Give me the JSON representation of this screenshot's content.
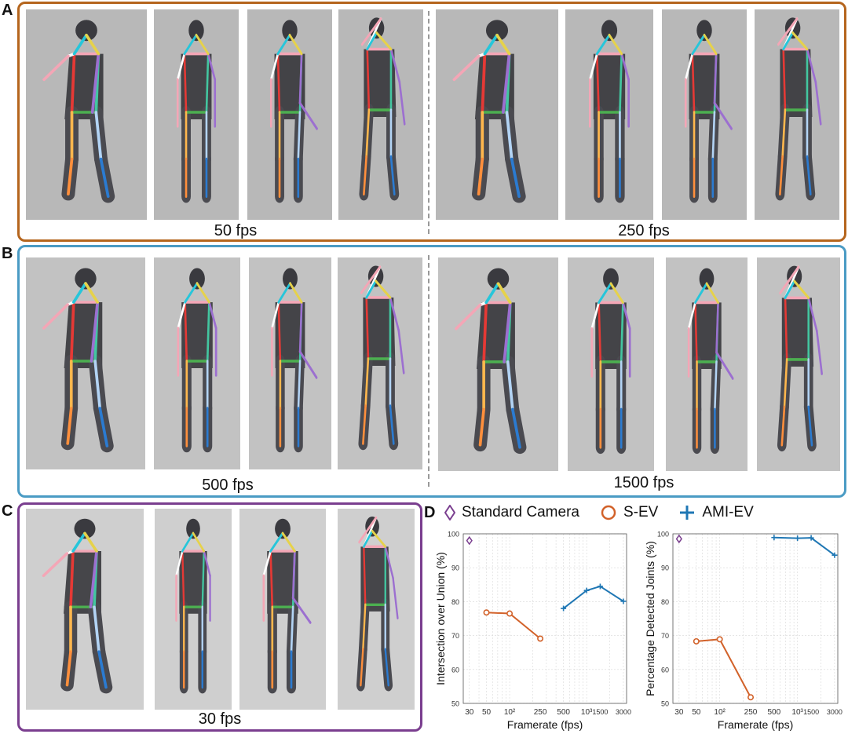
{
  "panels": {
    "A": {
      "letter": "A",
      "left_label": "50 fps",
      "right_label": "250 fps",
      "color": "#b5651d"
    },
    "B": {
      "letter": "B",
      "left_label": "500 fps",
      "right_label": "1500 fps",
      "color": "#4a9bc4"
    },
    "C": {
      "letter": "C",
      "label": "30 fps",
      "color": "#7a3e8f"
    },
    "D": {
      "letter": "D"
    }
  },
  "legend": {
    "standard": {
      "label": "Standard Camera",
      "color": "#7a3e8f"
    },
    "sev": {
      "label": "S-EV",
      "color": "#d2622a"
    },
    "amiev": {
      "label": "AMI-EV",
      "color": "#1f77b4"
    }
  },
  "chart_data": [
    {
      "type": "line",
      "xlabel": "Framerate (fps)",
      "ylabel": "Intersection over Union (%)",
      "xscale": "log",
      "xlim": [
        25,
        3300
      ],
      "ylim": [
        50,
        100
      ],
      "yticks": [
        50,
        60,
        70,
        80,
        90,
        100
      ],
      "xticks": [
        {
          "v": 30,
          "t": "30"
        },
        {
          "v": 50,
          "t": "50"
        },
        {
          "v": 100,
          "t": "10²"
        },
        {
          "v": 250,
          "t": "250"
        },
        {
          "v": 500,
          "t": "500"
        },
        {
          "v": 1000,
          "t": "10³"
        },
        {
          "v": 1500,
          "t": "1500"
        },
        {
          "v": 3000,
          "t": "3000"
        }
      ],
      "grid": true,
      "series": [
        {
          "name": "Standard Camera",
          "marker": "diamond",
          "color": "#7a3e8f",
          "x": [
            30
          ],
          "y": [
            98
          ]
        },
        {
          "name": "S-EV",
          "marker": "circle",
          "color": "#d2622a",
          "x": [
            50,
            100,
            250
          ],
          "y": [
            76.8,
            76.5,
            69.1
          ]
        },
        {
          "name": "AMI-EV",
          "marker": "plus",
          "color": "#1f77b4",
          "x": [
            500,
            1000,
            1500,
            3000
          ],
          "y": [
            78,
            83.3,
            84.5,
            80.1
          ]
        }
      ]
    },
    {
      "type": "line",
      "xlabel": "Framerate (fps)",
      "ylabel": "Percentage Detected Joints (%)",
      "xscale": "log",
      "xlim": [
        25,
        3300
      ],
      "ylim": [
        50,
        100
      ],
      "yticks": [
        50,
        60,
        70,
        80,
        90,
        100
      ],
      "xticks": [
        {
          "v": 30,
          "t": "30"
        },
        {
          "v": 50,
          "t": "50"
        },
        {
          "v": 100,
          "t": "10²"
        },
        {
          "v": 250,
          "t": "250"
        },
        {
          "v": 500,
          "t": "500"
        },
        {
          "v": 1000,
          "t": "10³"
        },
        {
          "v": 1500,
          "t": "1500"
        },
        {
          "v": 3000,
          "t": "3000"
        }
      ],
      "grid": true,
      "series": [
        {
          "name": "Standard Camera",
          "marker": "diamond",
          "color": "#7a3e8f",
          "x": [
            30
          ],
          "y": [
            98.5
          ]
        },
        {
          "name": "S-EV",
          "marker": "circle",
          "color": "#d2622a",
          "x": [
            50,
            100,
            250
          ],
          "y": [
            68.3,
            68.9,
            51.8
          ]
        },
        {
          "name": "AMI-EV",
          "marker": "plus",
          "color": "#1f77b4",
          "x": [
            500,
            1000,
            1500,
            3000
          ],
          "y": [
            98.9,
            98.7,
            98.8,
            93.7
          ]
        }
      ]
    }
  ]
}
